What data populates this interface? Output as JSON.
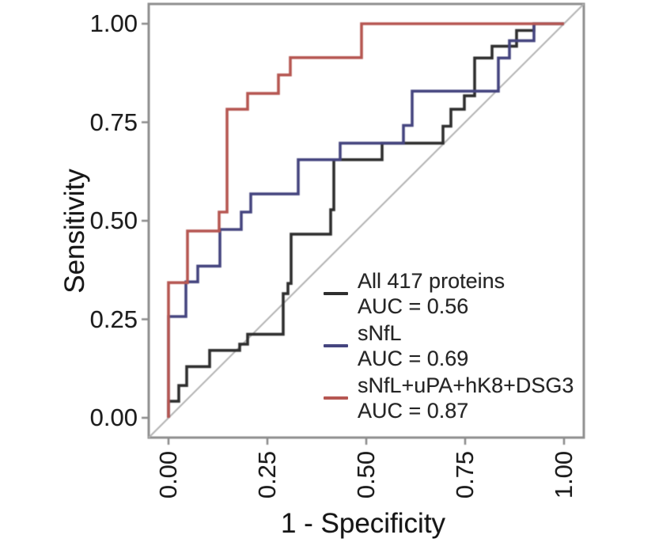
{
  "axes": {
    "x": {
      "label": "1 - Specificity",
      "tick_labels": [
        "0.00",
        "0.25",
        "0.50",
        "0.75",
        "1.00"
      ],
      "tick_values": [
        0,
        0.25,
        0.5,
        0.75,
        1
      ],
      "range": [
        0,
        1
      ]
    },
    "y": {
      "label": "Sensitivity",
      "tick_labels": [
        "0.00",
        "0.25",
        "0.50",
        "0.75",
        "1.00"
      ],
      "tick_values": [
        0,
        0.25,
        0.5,
        0.75,
        1
      ],
      "range": [
        0,
        1
      ]
    }
  },
  "colors": {
    "curve_black": "#2f2f2f",
    "curve_blue": "#45457f",
    "curve_red": "#b65752",
    "diagonal": "#b2b2b2",
    "panel_border": "#8f8f8f",
    "tick_mark": "#8a8a8a",
    "text": "#1c1c1c"
  },
  "chart_data": {
    "type": "line",
    "subtype": "roc-step-curves",
    "title": "",
    "xlabel": "1 - Specificity",
    "ylabel": "Sensitivity",
    "xlim": [
      0,
      1
    ],
    "ylim": [
      0,
      1
    ],
    "grid": false,
    "legend_position": "inside-right-bottom",
    "reference_diagonal": {
      "from": [
        0,
        0
      ],
      "to": [
        1,
        1
      ],
      "color": "#b2b2b2"
    },
    "series": [
      {
        "name": "All 417 proteins",
        "auc_label": "AUC = 0.56",
        "auc": 0.56,
        "color": "#2f2f2f",
        "points": [
          [
            0,
            0
          ],
          [
            0,
            0.042
          ],
          [
            0.026,
            0.042
          ],
          [
            0.026,
            0.082
          ],
          [
            0.046,
            0.082
          ],
          [
            0.046,
            0.13
          ],
          [
            0.104,
            0.13
          ],
          [
            0.104,
            0.171
          ],
          [
            0.18,
            0.171
          ],
          [
            0.18,
            0.187
          ],
          [
            0.2,
            0.187
          ],
          [
            0.2,
            0.212
          ],
          [
            0.29,
            0.212
          ],
          [
            0.29,
            0.315
          ],
          [
            0.302,
            0.315
          ],
          [
            0.302,
            0.341
          ],
          [
            0.31,
            0.341
          ],
          [
            0.31,
            0.466
          ],
          [
            0.41,
            0.466
          ],
          [
            0.41,
            0.528
          ],
          [
            0.418,
            0.528
          ],
          [
            0.418,
            0.655
          ],
          [
            0.54,
            0.655
          ],
          [
            0.54,
            0.697
          ],
          [
            0.694,
            0.697
          ],
          [
            0.694,
            0.74
          ],
          [
            0.714,
            0.74
          ],
          [
            0.714,
            0.783
          ],
          [
            0.748,
            0.783
          ],
          [
            0.748,
            0.817
          ],
          [
            0.774,
            0.817
          ],
          [
            0.774,
            0.913
          ],
          [
            0.818,
            0.913
          ],
          [
            0.818,
            0.943
          ],
          [
            0.88,
            0.943
          ],
          [
            0.88,
            0.983
          ],
          [
            0.924,
            0.983
          ],
          [
            0.924,
            1
          ],
          [
            1,
            1
          ]
        ]
      },
      {
        "name": "sNfL",
        "auc_label": "AUC = 0.69",
        "auc": 0.69,
        "color": "#45457f",
        "points": [
          [
            0,
            0
          ],
          [
            0,
            0.257
          ],
          [
            0.044,
            0.257
          ],
          [
            0.044,
            0.345
          ],
          [
            0.074,
            0.345
          ],
          [
            0.074,
            0.385
          ],
          [
            0.13,
            0.385
          ],
          [
            0.13,
            0.478
          ],
          [
            0.184,
            0.478
          ],
          [
            0.184,
            0.522
          ],
          [
            0.208,
            0.522
          ],
          [
            0.208,
            0.568
          ],
          [
            0.328,
            0.568
          ],
          [
            0.328,
            0.655
          ],
          [
            0.434,
            0.655
          ],
          [
            0.434,
            0.697
          ],
          [
            0.594,
            0.697
          ],
          [
            0.594,
            0.742
          ],
          [
            0.616,
            0.742
          ],
          [
            0.616,
            0.829
          ],
          [
            0.834,
            0.829
          ],
          [
            0.834,
            0.913
          ],
          [
            0.862,
            0.913
          ],
          [
            0.862,
            0.957
          ],
          [
            0.924,
            0.957
          ],
          [
            0.924,
            1
          ],
          [
            1,
            1
          ]
        ]
      },
      {
        "name": "sNfL+uPA+hK8+DSG3",
        "auc_label": "AUC = 0.87",
        "auc": 0.87,
        "color": "#b65752",
        "points": [
          [
            0,
            0
          ],
          [
            0,
            0.343
          ],
          [
            0.048,
            0.343
          ],
          [
            0.048,
            0.474
          ],
          [
            0.128,
            0.474
          ],
          [
            0.128,
            0.522
          ],
          [
            0.148,
            0.522
          ],
          [
            0.148,
            0.783
          ],
          [
            0.2,
            0.783
          ],
          [
            0.2,
            0.823
          ],
          [
            0.278,
            0.823
          ],
          [
            0.278,
            0.87
          ],
          [
            0.308,
            0.87
          ],
          [
            0.308,
            0.914
          ],
          [
            0.488,
            0.914
          ],
          [
            0.488,
            1
          ],
          [
            1,
            1
          ]
        ]
      }
    ]
  }
}
